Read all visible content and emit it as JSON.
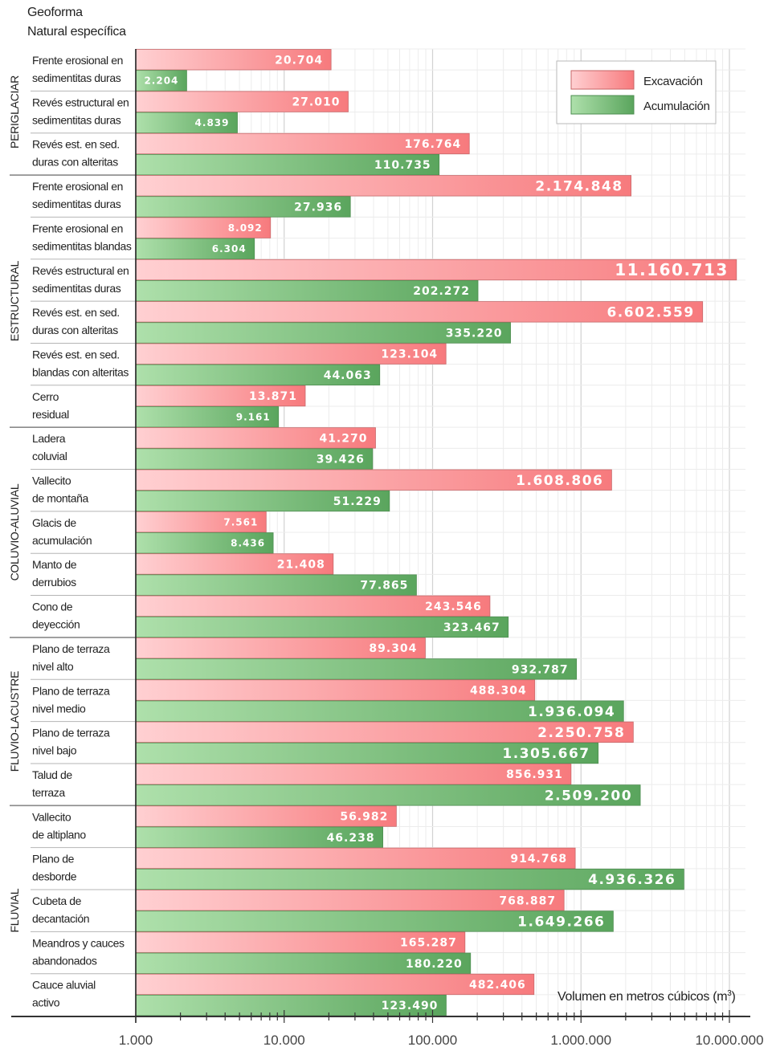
{
  "chart_data": {
    "type": "bar",
    "orientation": "horizontal",
    "xscale": "log",
    "title": "",
    "header": [
      "Geoforma",
      "Natural específica"
    ],
    "xlabel": "Volumen en metros cúbicos (m³)",
    "xlabel_main": "Volumen en metros cúbicos (m",
    "xlabel_sup": "3",
    "xlabel_close": ")",
    "xlim": [
      1000,
      14000000
    ],
    "xticks": [
      1000,
      10000,
      100000,
      1000000,
      10000000
    ],
    "xtick_labels": [
      "1.000",
      "10.000",
      "100.000",
      "1.000.000",
      "10.000.000"
    ],
    "grid": true,
    "legend": {
      "position": "top-right",
      "entries": [
        {
          "name": "Excavación",
          "color_light": "#ffc9cc",
          "color_dark": "#f87a7c"
        },
        {
          "name": "Acumulación",
          "color_light": "#a9dea8",
          "color_dark": "#5aa55d"
        }
      ]
    },
    "groups": [
      {
        "name": "PERIGLACIAR",
        "categories": [
          {
            "label": [
              "Frente erosional en",
              "sedimentitas duras"
            ],
            "excavacion": 20704,
            "acumulacion": 2204
          },
          {
            "label": [
              "Revés estructural en",
              "sedimentitas duras"
            ],
            "excavacion": 27010,
            "acumulacion": 4839
          },
          {
            "label": [
              "Revés est. en sed.",
              "duras con alteritas"
            ],
            "excavacion": 176764,
            "acumulacion": 110735
          }
        ]
      },
      {
        "name": "ESTRUCTURAL",
        "categories": [
          {
            "label": [
              "Frente erosional en",
              "sedimentitas duras"
            ],
            "excavacion": 2174848,
            "acumulacion": 27936
          },
          {
            "label": [
              "Frente erosional en",
              "sedimentitas blandas"
            ],
            "excavacion": 8092,
            "acumulacion": 6304
          },
          {
            "label": [
              "Revés estructural en",
              "sedimentitas duras"
            ],
            "excavacion": 11160713,
            "acumulacion": 202272
          },
          {
            "label": [
              "Revés est. en sed.",
              "duras con alteritas"
            ],
            "excavacion": 6602559,
            "acumulacion": 335220
          },
          {
            "label": [
              "Revés est. en sed.",
              "blandas con alteritas"
            ],
            "excavacion": 123104,
            "acumulacion": 44063
          },
          {
            "label": [
              "Cerro",
              "residual"
            ],
            "excavacion": 13871,
            "acumulacion": 9161
          }
        ]
      },
      {
        "name": "COLUVIO-ALUVIAL",
        "categories": [
          {
            "label": [
              "Ladera",
              "coluvial"
            ],
            "excavacion": 41270,
            "acumulacion": 39426
          },
          {
            "label": [
              "Vallecito",
              "de montaña"
            ],
            "excavacion": 1608806,
            "acumulacion": 51229
          },
          {
            "label": [
              "Glacis de",
              "acumulación"
            ],
            "excavacion": 7561,
            "acumulacion": 8436
          },
          {
            "label": [
              "Manto de",
              "derrubios"
            ],
            "excavacion": 21408,
            "acumulacion": 77865
          },
          {
            "label": [
              "Cono de",
              "deyección"
            ],
            "excavacion": 243546,
            "acumulacion": 323467
          }
        ]
      },
      {
        "name": "FLUVIO-LACUSTRE",
        "categories": [
          {
            "label": [
              "Plano de terraza",
              "nivel alto"
            ],
            "excavacion": 89304,
            "acumulacion": 932787
          },
          {
            "label": [
              "Plano de terraza",
              "nivel medio"
            ],
            "excavacion": 488304,
            "acumulacion": 1936094
          },
          {
            "label": [
              "Plano de terraza",
              "nivel bajo"
            ],
            "excavacion": 2250758,
            "acumulacion": 1305667
          },
          {
            "label": [
              "Talud de",
              "terraza"
            ],
            "excavacion": 856931,
            "acumulacion": 2509200
          }
        ]
      },
      {
        "name": "FLUVIAL",
        "categories": [
          {
            "label": [
              "Vallecito",
              "de altiplano"
            ],
            "excavacion": 56982,
            "acumulacion": 46238
          },
          {
            "label": [
              "Plano de",
              "desborde"
            ],
            "excavacion": 914768,
            "acumulacion": 4936326
          },
          {
            "label": [
              "Cubeta de",
              "decantación"
            ],
            "excavacion": 768887,
            "acumulacion": 1649266
          },
          {
            "label": [
              "Meandros y cauces",
              "abandonados"
            ],
            "excavacion": 165287,
            "acumulacion": 180220
          },
          {
            "label": [
              "Cauce aluvial",
              "activo"
            ],
            "excavacion": 482406,
            "acumulacion": 123490
          }
        ]
      }
    ],
    "value_labels": "Spanish thousands separator (.)"
  }
}
